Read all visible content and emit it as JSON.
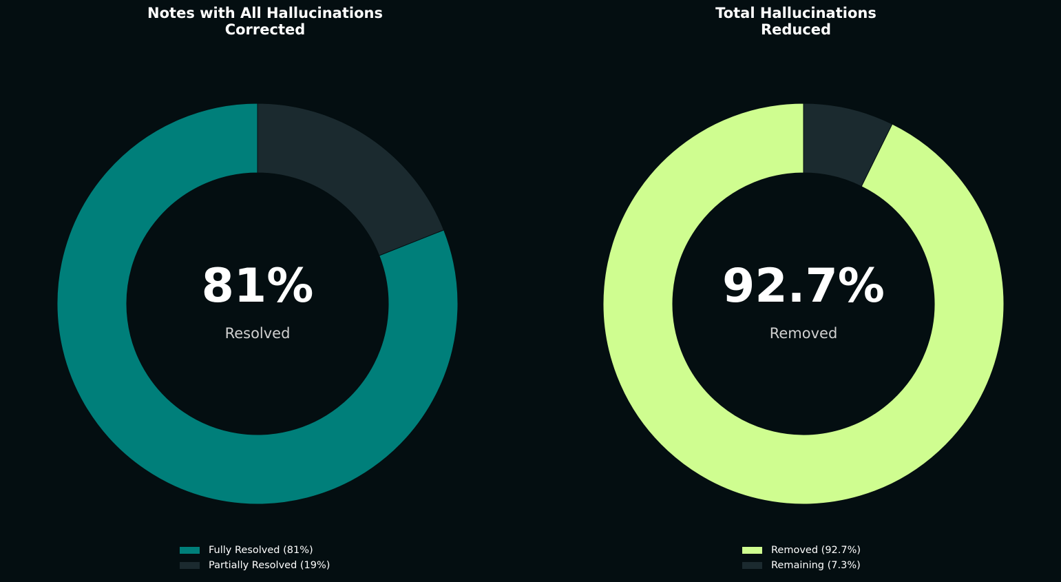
{
  "chart_data": [
    {
      "type": "pie",
      "style": "donut",
      "title": "Notes with All Hallucinations\nCorrected",
      "center_value": "81%",
      "center_label": "Resolved",
      "start": "top",
      "direction": "counterclockwise",
      "slices": [
        {
          "label": "Fully Resolved (81%)",
          "value": 81,
          "color": "#007f7a"
        },
        {
          "label": "Partially Resolved (19%)",
          "value": 19,
          "color": "#1b2a2f"
        }
      ],
      "legend_position": "bottom-center"
    },
    {
      "type": "pie",
      "style": "donut",
      "title": "Total Hallucinations\nReduced",
      "center_value": "92.7%",
      "center_label": "Removed",
      "start": "top",
      "direction": "counterclockwise",
      "slices": [
        {
          "label": "Removed (92.7%)",
          "value": 92.7,
          "color": "#cffd90"
        },
        {
          "label": "Remaining (7.3%)",
          "value": 7.3,
          "color": "#1b2a2f"
        }
      ],
      "legend_position": "bottom-center"
    }
  ],
  "colors": {
    "background": "#040e11",
    "hole": "#040e11",
    "slice_edge": "#040e11"
  }
}
